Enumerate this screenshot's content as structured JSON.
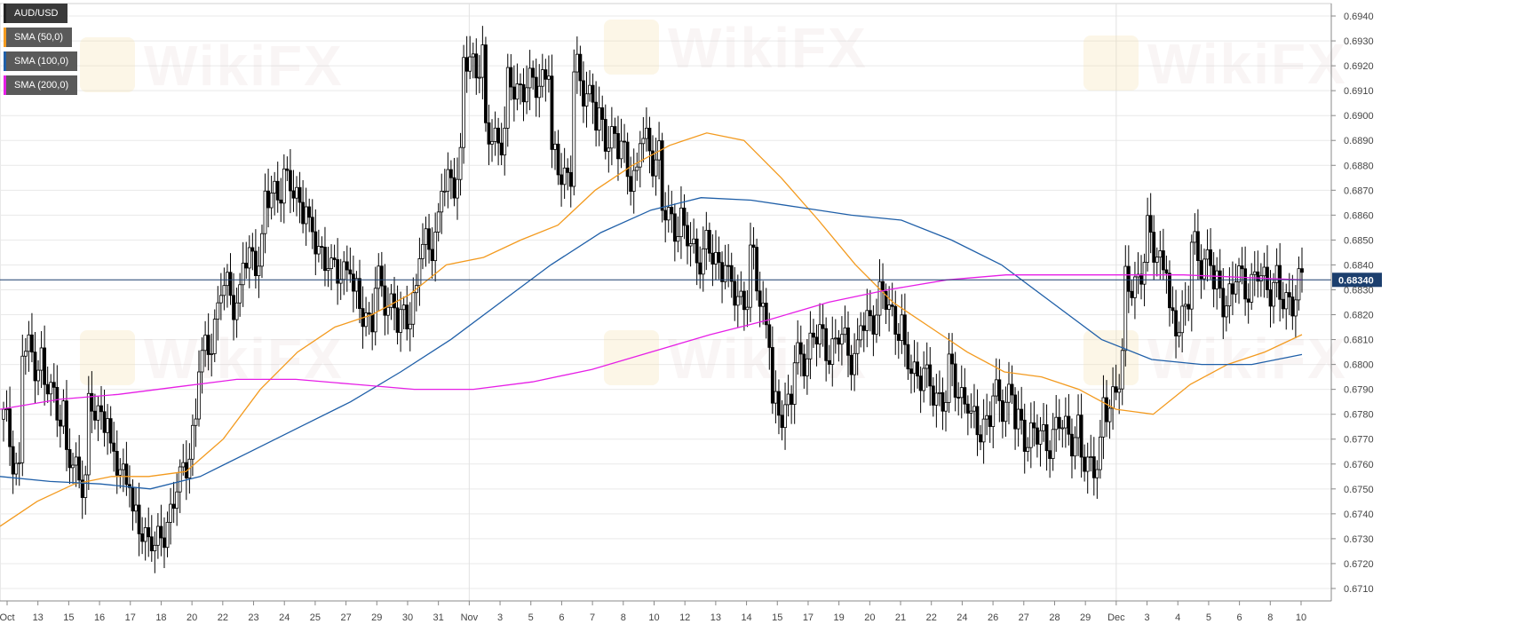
{
  "legend": [
    {
      "label": "AUD/USD",
      "color": "#222222",
      "bg": "#3a3a3a"
    },
    {
      "label": "SMA (50,0)",
      "color": "#f39a1e",
      "bg": "#5a5a5a"
    },
    {
      "label": "SMA (100,0)",
      "color": "#1f5fa8",
      "bg": "#5a5a5a"
    },
    {
      "label": "SMA (200,0)",
      "color": "#e61ee6",
      "bg": "#5a5a5a"
    }
  ],
  "watermark": "WikiFX",
  "current_price_label": "0.68340",
  "colors": {
    "sma50": "#f39a1e",
    "sma100": "#1f5fa8",
    "sma200": "#e61ee6",
    "price_line": "#1c3f6e",
    "grid": "#e9e9e9",
    "background": "#ffffff",
    "candle_up": "#ffffff",
    "candle_down": "#000000"
  },
  "chart_data": {
    "type": "candlestick",
    "title": "",
    "ylim": [
      0.6705,
      0.6945
    ],
    "y_ticks": [
      "0.6710",
      "0.6720",
      "0.6730",
      "0.6740",
      "0.6750",
      "0.6760",
      "0.6770",
      "0.6780",
      "0.6790",
      "0.6800",
      "0.6810",
      "0.6820",
      "0.6830",
      "0.6840",
      "0.6850",
      "0.6860",
      "0.6870",
      "0.6880",
      "0.6890",
      "0.6900",
      "0.6910",
      "0.6920",
      "0.6930",
      "0.6940"
    ],
    "x_ticks": [
      "Oct",
      "13",
      "15",
      "16",
      "17",
      "18",
      "20",
      "22",
      "23",
      "24",
      "25",
      "27",
      "29",
      "30",
      "31",
      "Nov",
      "3",
      "5",
      "6",
      "7",
      "8",
      "10",
      "12",
      "13",
      "14",
      "15",
      "17",
      "19",
      "20",
      "21",
      "22",
      "24",
      "26",
      "27",
      "28",
      "29",
      "Dec",
      "3",
      "4",
      "5",
      "6",
      "8",
      "10"
    ],
    "current_price": 0.6834,
    "ohlc_waypoints": [
      [
        0.6778,
        0.6748
      ],
      [
        0.6805,
        0.68
      ],
      [
        0.679,
        0.6778
      ],
      [
        0.676,
        0.6753
      ],
      [
        0.678,
        0.6782
      ],
      [
        0.676,
        0.6755
      ],
      [
        0.6735,
        0.673
      ],
      [
        0.6725,
        0.6755
      ],
      [
        0.675,
        0.679
      ],
      [
        0.68,
        0.683
      ],
      [
        0.683,
        0.6825
      ],
      [
        0.684,
        0.685
      ],
      [
        0.6865,
        0.688
      ],
      [
        0.687,
        0.6862
      ],
      [
        0.685,
        0.684
      ],
      [
        0.6835,
        0.6845
      ],
      [
        0.6825,
        0.6815
      ],
      [
        0.683,
        0.6822
      ],
      [
        0.6815,
        0.6835
      ],
      [
        0.6845,
        0.686
      ],
      [
        0.687,
        0.6885
      ],
      [
        0.692,
        0.6925
      ],
      [
        0.689,
        0.6895
      ],
      [
        0.691,
        0.6915
      ],
      [
        0.691,
        0.6925
      ],
      [
        0.688,
        0.6875
      ],
      [
        0.6915,
        0.6905
      ],
      [
        0.6895,
        0.689
      ],
      [
        0.6885,
        0.687
      ],
      [
        0.689,
        0.688
      ],
      [
        0.686,
        0.6855
      ],
      [
        0.685,
        0.684
      ],
      [
        0.6845,
        0.6838
      ],
      [
        0.683,
        0.6825
      ],
      [
        0.684,
        0.68
      ],
      [
        0.678,
        0.679
      ],
      [
        0.68,
        0.6815
      ],
      [
        0.681,
        0.6805
      ],
      [
        0.681,
        0.68
      ],
      [
        0.6815,
        0.683
      ],
      [
        0.6825,
        0.681
      ],
      [
        0.68,
        0.6795
      ],
      [
        0.679,
        0.6785
      ],
      [
        0.6795,
        0.678
      ],
      [
        0.6775,
        0.678
      ],
      [
        0.6785,
        0.679
      ],
      [
        0.6775,
        0.677
      ],
      [
        0.677,
        0.6773
      ],
      [
        0.6775,
        0.677
      ],
      [
        0.676,
        0.6765
      ],
      [
        0.678,
        0.681
      ],
      [
        0.683,
        0.6845
      ],
      [
        0.685,
        0.6835
      ],
      [
        0.6815,
        0.683
      ],
      [
        0.6845,
        0.684
      ],
      [
        0.683,
        0.6825
      ],
      [
        0.6835,
        0.683
      ],
      [
        0.6835,
        0.683
      ],
      [
        0.6825,
        0.6832
      ]
    ],
    "series": [
      {
        "name": "SMA (50,0)",
        "values": [
          0.6735,
          0.6745,
          0.6752,
          0.6755,
          0.6755,
          0.6757,
          0.677,
          0.679,
          0.6805,
          0.6815,
          0.682,
          0.6828,
          0.684,
          0.6843,
          0.685,
          0.6856,
          0.687,
          0.688,
          0.6888,
          0.6893,
          0.689,
          0.6875,
          0.6858,
          0.684,
          0.6825,
          0.6815,
          0.6805,
          0.6797,
          0.6795,
          0.679,
          0.6782,
          0.678,
          0.6792,
          0.68,
          0.6805,
          0.6812
        ]
      },
      {
        "name": "SMA (100,0)",
        "values": [
          0.6755,
          0.6753,
          0.6752,
          0.675,
          0.6755,
          0.6765,
          0.6775,
          0.6785,
          0.6797,
          0.681,
          0.6825,
          0.684,
          0.6853,
          0.6862,
          0.6867,
          0.6866,
          0.6863,
          0.686,
          0.6858,
          0.685,
          0.684,
          0.6825,
          0.681,
          0.6802,
          0.68,
          0.68,
          0.6804
        ]
      },
      {
        "name": "SMA (200,0)",
        "values": [
          0.6782,
          0.6786,
          0.6788,
          0.6791,
          0.6794,
          0.6794,
          0.6792,
          0.679,
          0.679,
          0.6793,
          0.6798,
          0.6805,
          0.6812,
          0.6818,
          0.6825,
          0.683,
          0.6834,
          0.6836,
          0.6836,
          0.6836,
          0.6836,
          0.6835,
          0.6834
        ]
      }
    ]
  }
}
